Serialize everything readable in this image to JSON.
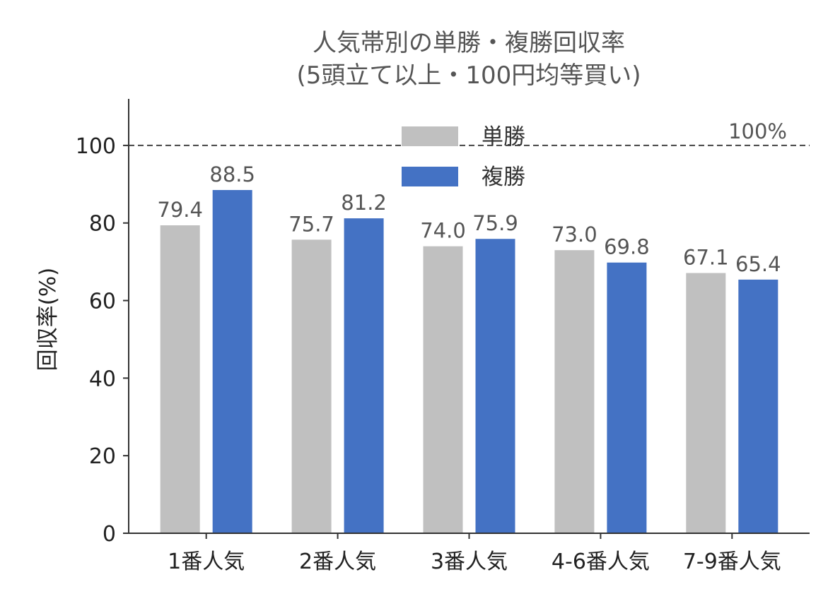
{
  "chart_data": {
    "type": "bar",
    "title_line1": "人気帯別の単勝・複勝回収率",
    "title_line2": "(5頭立て以上・100円均等買い)",
    "xlabel": "",
    "ylabel": "回収率(%)",
    "categories": [
      "1番人気",
      "2番人気",
      "3番人気",
      "4-6番人気",
      "7-9番人気"
    ],
    "series": [
      {
        "name": "単勝",
        "color": "#c0c0c0",
        "values": [
          79.4,
          75.7,
          74.0,
          73.0,
          67.1
        ],
        "labels": [
          "79.4",
          "75.7",
          "74.0",
          "73.0",
          "67.1"
        ]
      },
      {
        "name": "複勝",
        "color": "#4472c4",
        "values": [
          88.5,
          81.2,
          75.9,
          69.8,
          65.4
        ],
        "labels": [
          "88.5",
          "81.2",
          "75.9",
          "69.8",
          "65.4"
        ]
      }
    ],
    "ylim": [
      0,
      112
    ],
    "yticks": [
      0,
      20,
      40,
      60,
      80,
      100
    ],
    "reference_line": {
      "value": 100,
      "label": "100%",
      "style": "dashed"
    },
    "legend": {
      "placement": "top-center"
    },
    "grid": false
  }
}
